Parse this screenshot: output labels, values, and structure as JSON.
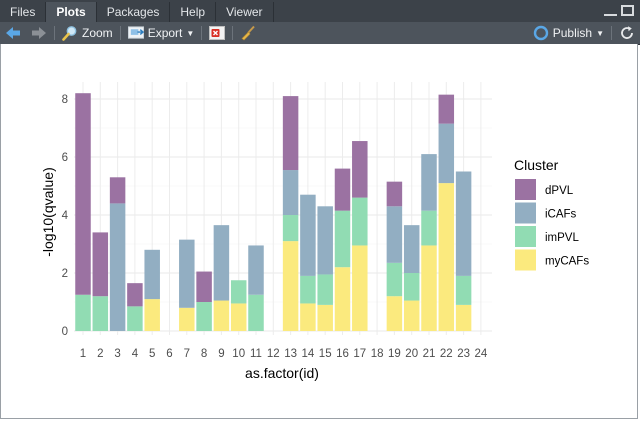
{
  "tabs": [
    {
      "label": "Files"
    },
    {
      "label": "Plots"
    },
    {
      "label": "Packages"
    },
    {
      "label": "Help"
    },
    {
      "label": "Viewer"
    }
  ],
  "toolbar": {
    "zoom_label": "Zoom",
    "export_label": "Export",
    "publish_label": "Publish"
  },
  "colors": {
    "dPVL": "#9b72a2",
    "iCAFs": "#92aec2",
    "imPVL": "#91dcb3",
    "myCAFs": "#fbea7e"
  },
  "chart_data": {
    "type": "bar",
    "stacked": true,
    "xlabel": "as.factor(id)",
    "ylabel": "-log10(qvalue)",
    "ylim": [
      0,
      8.5
    ],
    "yticks": [
      0,
      2,
      4,
      6,
      8
    ],
    "grid": true,
    "legend_title": "Cluster",
    "legend_position": "right",
    "categories": [
      "1",
      "2",
      "3",
      "4",
      "5",
      "6",
      "7",
      "8",
      "9",
      "10",
      "11",
      "12",
      "13",
      "14",
      "15",
      "16",
      "17",
      "18",
      "19",
      "20",
      "21",
      "22",
      "23",
      "24"
    ],
    "series": [
      {
        "name": "myCAFs",
        "values": [
          0,
          0,
          0,
          0,
          1.1,
          0,
          0.8,
          0,
          1.05,
          0.95,
          0,
          0,
          3.1,
          0.95,
          0.9,
          2.2,
          2.95,
          0,
          1.2,
          1.05,
          2.95,
          5.1,
          0.9,
          0
        ]
      },
      {
        "name": "imPVL",
        "values": [
          1.25,
          1.2,
          0,
          0.85,
          0,
          0,
          0,
          1.0,
          0,
          0.8,
          1.25,
          0,
          0.9,
          0.95,
          1.05,
          1.95,
          1.65,
          0,
          1.15,
          0.95,
          1.2,
          0,
          1.0,
          0
        ]
      },
      {
        "name": "iCAFs",
        "values": [
          0,
          0,
          4.4,
          0,
          1.7,
          0,
          2.35,
          0,
          2.6,
          0,
          1.7,
          0,
          1.55,
          2.8,
          2.35,
          0,
          0,
          0,
          1.95,
          1.65,
          1.95,
          2.05,
          3.6,
          0
        ]
      },
      {
        "name": "dPVL",
        "values": [
          6.95,
          2.2,
          0.9,
          0.8,
          0,
          0,
          0,
          1.05,
          0,
          0,
          0,
          0,
          2.55,
          0,
          0,
          1.45,
          1.95,
          0,
          0.85,
          0,
          0,
          1.0,
          0,
          0
        ]
      }
    ]
  }
}
